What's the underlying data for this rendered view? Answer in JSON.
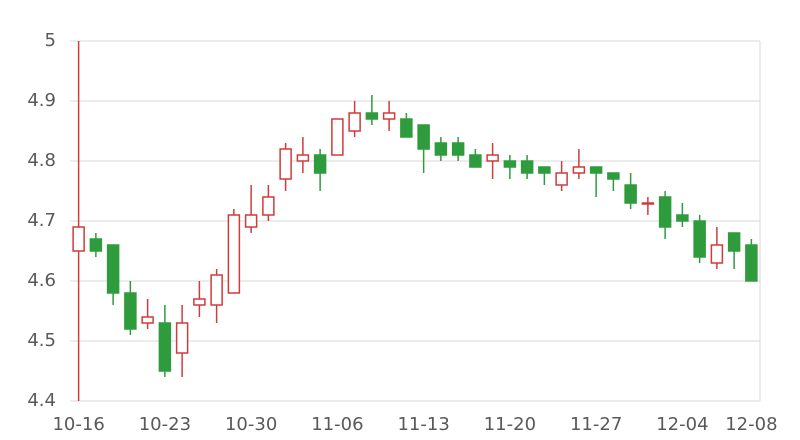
{
  "chart_data": {
    "type": "candlestick",
    "categories": [
      "10-16",
      null,
      null,
      null,
      null,
      "10-23",
      null,
      null,
      null,
      null,
      "10-30",
      null,
      null,
      null,
      null,
      "11-06",
      null,
      null,
      null,
      null,
      "11-13",
      null,
      null,
      null,
      null,
      "11-20",
      null,
      null,
      null,
      null,
      "11-27",
      null,
      null,
      null,
      null,
      "12-04",
      null,
      null,
      null,
      "12-08"
    ],
    "open": [
      4.65,
      4.67,
      4.66,
      4.58,
      4.53,
      4.53,
      4.48,
      4.56,
      4.56,
      4.58,
      4.69,
      4.71,
      4.77,
      4.8,
      4.81,
      4.81,
      4.85,
      4.88,
      4.87,
      4.87,
      4.86,
      4.83,
      4.83,
      4.81,
      4.8,
      4.8,
      4.8,
      4.79,
      4.76,
      4.78,
      4.79,
      4.78,
      4.76,
      4.73,
      4.74,
      4.71,
      4.7,
      4.63,
      4.68,
      4.66
    ],
    "high": [
      5.0,
      4.68,
      4.66,
      4.6,
      4.57,
      4.56,
      4.56,
      4.6,
      4.62,
      4.72,
      4.76,
      4.76,
      4.83,
      4.84,
      4.82,
      4.87,
      4.9,
      4.91,
      4.9,
      4.88,
      4.86,
      4.84,
      4.84,
      4.82,
      4.83,
      4.81,
      4.81,
      4.79,
      4.8,
      4.82,
      4.79,
      4.78,
      4.78,
      4.74,
      4.75,
      4.73,
      4.71,
      4.69,
      4.68,
      4.67
    ],
    "low": [
      4.4,
      4.64,
      4.56,
      4.51,
      4.52,
      4.44,
      4.44,
      4.54,
      4.53,
      4.58,
      4.68,
      4.7,
      4.75,
      4.78,
      4.75,
      4.81,
      4.84,
      4.86,
      4.85,
      4.84,
      4.78,
      4.8,
      4.8,
      4.79,
      4.77,
      4.77,
      4.77,
      4.76,
      4.75,
      4.77,
      4.74,
      4.75,
      4.72,
      4.71,
      4.67,
      4.69,
      4.63,
      4.62,
      4.62,
      4.6
    ],
    "close": [
      4.69,
      4.65,
      4.58,
      4.52,
      4.54,
      4.45,
      4.53,
      4.57,
      4.61,
      4.71,
      4.71,
      4.74,
      4.82,
      4.81,
      4.78,
      4.87,
      4.88,
      4.87,
      4.88,
      4.84,
      4.82,
      4.81,
      4.81,
      4.79,
      4.81,
      4.79,
      4.78,
      4.78,
      4.78,
      4.79,
      4.78,
      4.77,
      4.73,
      4.73,
      4.69,
      4.7,
      4.64,
      4.66,
      4.65,
      4.6
    ],
    "up_color": "#d13b3b",
    "down_color": "#2e9b3c",
    "ylim": [
      4.4,
      5
    ],
    "yticks": [
      4.4,
      4.5,
      4.6,
      4.7,
      4.8,
      4.9,
      5
    ],
    "grid": true
  }
}
